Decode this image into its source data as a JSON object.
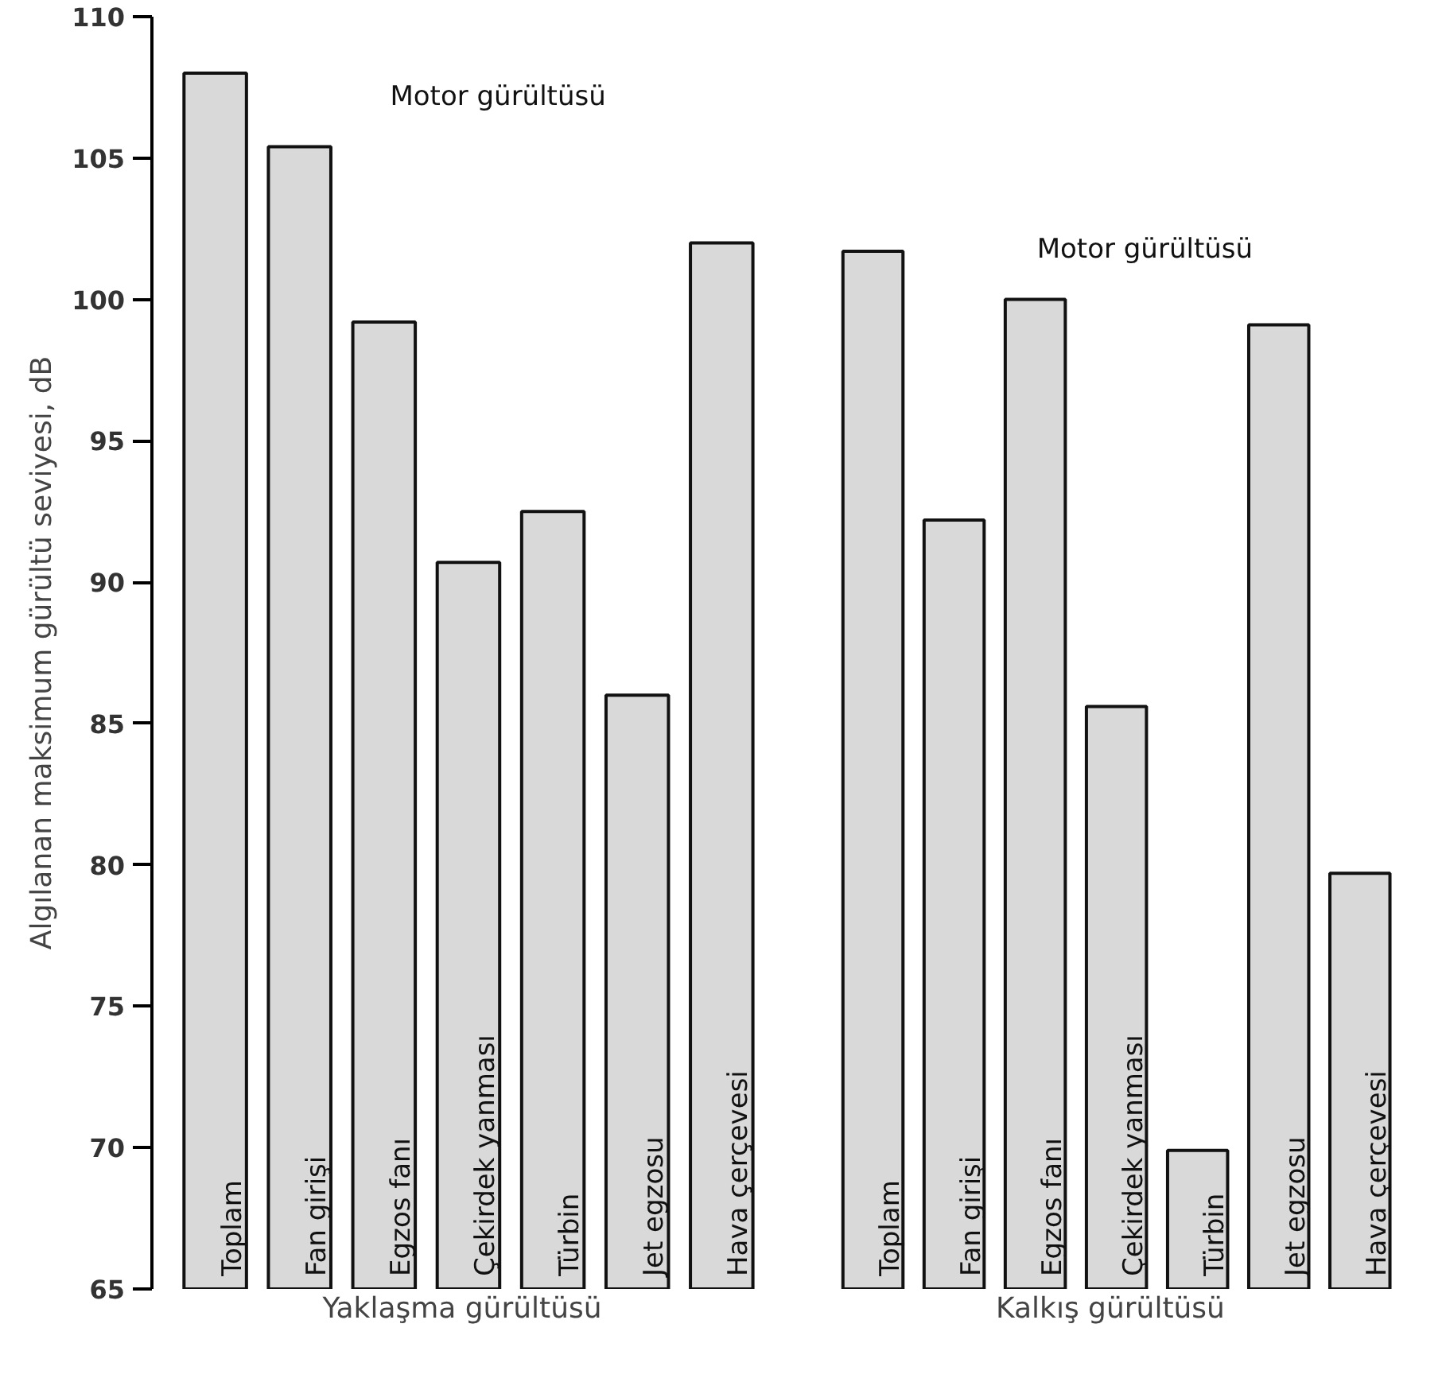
{
  "chart_data": [
    {
      "type": "bar",
      "xlabel": "Yaklaşma gürültüsü",
      "ylabel": "Algılanan maksimum gürültü seviyesi, dB",
      "categories": [
        "Toplam",
        "Fan girişi",
        "Egzos fanı",
        "Çekirdek yanması",
        "Türbin",
        "Jet egzosu",
        "Hava çerçevesi"
      ],
      "values": [
        108.0,
        105.4,
        99.2,
        90.7,
        92.5,
        86.0,
        102.0
      ],
      "color": "#d9d9d9",
      "ylim": [
        65,
        110
      ],
      "yticks": [
        65,
        70,
        75,
        80,
        85,
        90,
        95,
        100,
        105,
        110
      ],
      "grid": false,
      "annotations": [
        "Motor gürültüsü"
      ]
    },
    {
      "type": "bar",
      "xlabel": "Kalkış gürültüsü",
      "categories": [
        "Toplam",
        "Fan girişi",
        "Egzos fanı",
        "Çekirdek yanması",
        "Türbin",
        "Jet egzosu",
        "Hava çerçevesi"
      ],
      "values": [
        101.7,
        92.2,
        100.0,
        85.6,
        69.9,
        99.1,
        79.7
      ],
      "color": "#d9d9d9",
      "ylim": [
        65,
        110
      ],
      "tick_labels": false,
      "grid": false,
      "annotations": [
        "Motor gürültüsü"
      ]
    }
  ]
}
